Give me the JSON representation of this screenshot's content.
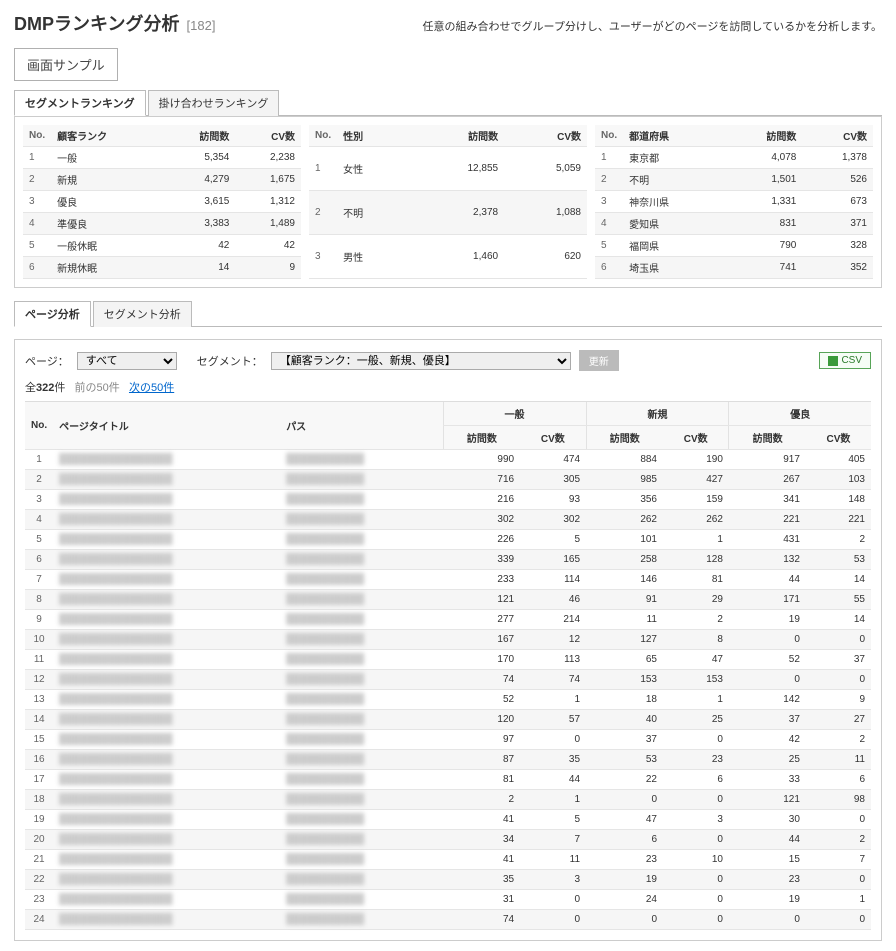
{
  "header": {
    "title": "DMPランキング分析",
    "code": "[182]",
    "description": "任意の組み合わせでグループ分けし、ユーザーがどのページを訪問しているかを分析します。"
  },
  "sample_button": "画面サンプル",
  "ranking_tabs": {
    "segment": "セグメントランキング",
    "combo": "掛け合わせランキング"
  },
  "summary_columns": {
    "no": "No.",
    "label": "",
    "visits": "訪問数",
    "cv": "CV数"
  },
  "summary1": {
    "header": "顧客ランク",
    "rows": [
      {
        "no": 1,
        "label": "一般",
        "visits": "5,354",
        "cv": "2,238"
      },
      {
        "no": 2,
        "label": "新規",
        "visits": "4,279",
        "cv": "1,675"
      },
      {
        "no": 3,
        "label": "優良",
        "visits": "3,615",
        "cv": "1,312"
      },
      {
        "no": 4,
        "label": "準優良",
        "visits": "3,383",
        "cv": "1,489"
      },
      {
        "no": 5,
        "label": "一般休眠",
        "visits": "42",
        "cv": "42"
      },
      {
        "no": 6,
        "label": "新規休眠",
        "visits": "14",
        "cv": "9"
      }
    ]
  },
  "summary2": {
    "header": "性別",
    "rows": [
      {
        "no": 1,
        "label": "女性",
        "visits": "12,855",
        "cv": "5,059"
      },
      {
        "no": 2,
        "label": "不明",
        "visits": "2,378",
        "cv": "1,088"
      },
      {
        "no": 3,
        "label": "男性",
        "visits": "1,460",
        "cv": "620"
      }
    ]
  },
  "summary3": {
    "header": "都道府県",
    "rows": [
      {
        "no": 1,
        "label": "東京都",
        "visits": "4,078",
        "cv": "1,378"
      },
      {
        "no": 2,
        "label": "不明",
        "visits": "1,501",
        "cv": "526"
      },
      {
        "no": 3,
        "label": "神奈川県",
        "visits": "1,331",
        "cv": "673"
      },
      {
        "no": 4,
        "label": "愛知県",
        "visits": "831",
        "cv": "371"
      },
      {
        "no": 5,
        "label": "福岡県",
        "visits": "790",
        "cv": "328"
      },
      {
        "no": 6,
        "label": "埼玉県",
        "visits": "741",
        "cv": "352"
      }
    ]
  },
  "page_tabs": {
    "page": "ページ分析",
    "segment": "セグメント分析"
  },
  "controls": {
    "page_label": "ページ：",
    "page_option": "すべて",
    "segment_label": "セグメント：",
    "segment_option": "【顧客ランク：一般、新規、優良】",
    "update": "更新",
    "csv": "CSV"
  },
  "pager": {
    "total_prefix": "全",
    "total_count": "322",
    "total_suffix": "件",
    "prev": "前の50件",
    "next": "次の50件"
  },
  "data_headers": {
    "no": "No.",
    "title": "ページタイトル",
    "path": "パス",
    "visits": "訪問数",
    "cv": "CV数",
    "grp1": "一般",
    "grp2": "新規",
    "grp3": "優良"
  },
  "data_rows": [
    {
      "no": 1,
      "v1": 990,
      "c1": 474,
      "v2": 884,
      "c2": 190,
      "v3": 917,
      "c3": 405
    },
    {
      "no": 2,
      "v1": 716,
      "c1": 305,
      "v2": 985,
      "c2": 427,
      "v3": 267,
      "c3": 103
    },
    {
      "no": 3,
      "v1": 216,
      "c1": 93,
      "v2": 356,
      "c2": 159,
      "v3": 341,
      "c3": 148
    },
    {
      "no": 4,
      "v1": 302,
      "c1": 302,
      "v2": 262,
      "c2": 262,
      "v3": 221,
      "c3": 221
    },
    {
      "no": 5,
      "v1": 226,
      "c1": 5,
      "v2": 101,
      "c2": 1,
      "v3": 431,
      "c3": 2
    },
    {
      "no": 6,
      "v1": 339,
      "c1": 165,
      "v2": 258,
      "c2": 128,
      "v3": 132,
      "c3": 53
    },
    {
      "no": 7,
      "v1": 233,
      "c1": 114,
      "v2": 146,
      "c2": 81,
      "v3": 44,
      "c3": 14
    },
    {
      "no": 8,
      "v1": 121,
      "c1": 46,
      "v2": 91,
      "c2": 29,
      "v3": 171,
      "c3": 55
    },
    {
      "no": 9,
      "v1": 277,
      "c1": 214,
      "v2": 11,
      "c2": 2,
      "v3": 19,
      "c3": 14
    },
    {
      "no": 10,
      "v1": 167,
      "c1": 12,
      "v2": 127,
      "c2": 8,
      "v3": 0,
      "c3": 0
    },
    {
      "no": 11,
      "v1": 170,
      "c1": 113,
      "v2": 65,
      "c2": 47,
      "v3": 52,
      "c3": 37
    },
    {
      "no": 12,
      "v1": 74,
      "c1": 74,
      "v2": 153,
      "c2": 153,
      "v3": 0,
      "c3": 0
    },
    {
      "no": 13,
      "v1": 52,
      "c1": 1,
      "v2": 18,
      "c2": 1,
      "v3": 142,
      "c3": 9
    },
    {
      "no": 14,
      "v1": 120,
      "c1": 57,
      "v2": 40,
      "c2": 25,
      "v3": 37,
      "c3": 27
    },
    {
      "no": 15,
      "v1": 97,
      "c1": 0,
      "v2": 37,
      "c2": 0,
      "v3": 42,
      "c3": 2
    },
    {
      "no": 16,
      "v1": 87,
      "c1": 35,
      "v2": 53,
      "c2": 23,
      "v3": 25,
      "c3": 11
    },
    {
      "no": 17,
      "v1": 81,
      "c1": 44,
      "v2": 22,
      "c2": 6,
      "v3": 33,
      "c3": 6
    },
    {
      "no": 18,
      "v1": 2,
      "c1": 1,
      "v2": 0,
      "c2": 0,
      "v3": 121,
      "c3": 98
    },
    {
      "no": 19,
      "v1": 41,
      "c1": 5,
      "v2": 47,
      "c2": 3,
      "v3": 30,
      "c3": 0
    },
    {
      "no": 20,
      "v1": 34,
      "c1": 7,
      "v2": 6,
      "c2": 0,
      "v3": 44,
      "c3": 2
    },
    {
      "no": 21,
      "v1": 41,
      "c1": 11,
      "v2": 23,
      "c2": 10,
      "v3": 15,
      "c3": 7
    },
    {
      "no": 22,
      "v1": 35,
      "c1": 3,
      "v2": 19,
      "c2": 0,
      "v3": 23,
      "c3": 0
    },
    {
      "no": 23,
      "v1": 31,
      "c1": 0,
      "v2": 24,
      "c2": 0,
      "v3": 19,
      "c3": 1
    },
    {
      "no": 24,
      "v1": 74,
      "c1": 0,
      "v2": 0,
      "c2": 0,
      "v3": 0,
      "c3": 0
    }
  ],
  "blur_placeholder": {
    "title": "████████████████",
    "path": "███████████"
  }
}
